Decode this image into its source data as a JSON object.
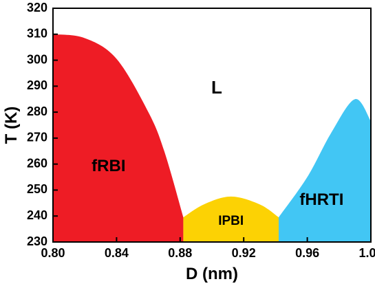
{
  "chart_data": {
    "type": "area",
    "xlabel": "D (nm)",
    "ylabel": "T (K)",
    "xlim": [
      0.8,
      1.0
    ],
    "ylim": [
      230,
      320
    ],
    "x_ticks": [
      "0.80",
      "0.84",
      "0.88",
      "0.92",
      "0.96",
      "1.00"
    ],
    "y_ticks": [
      "230",
      "240",
      "250",
      "260",
      "270",
      "280",
      "290",
      "300",
      "310",
      "320"
    ],
    "grid": false,
    "regions": [
      {
        "name": "fRBI",
        "color": "#ee1c25",
        "boundary": [
          [
            0.8,
            310.0
          ],
          [
            0.82,
            308.5
          ],
          [
            0.84,
            300.5
          ],
          [
            0.86,
            280
          ],
          [
            0.87,
            265
          ],
          [
            0.882,
            239.5
          ]
        ]
      },
      {
        "name": "IPBI",
        "color": "#fcd204",
        "boundary": [
          [
            0.882,
            239.5
          ],
          [
            0.895,
            244.5
          ],
          [
            0.912,
            247.5
          ],
          [
            0.93,
            244.5
          ],
          [
            0.942,
            239.5
          ]
        ]
      },
      {
        "name": "fHRTI",
        "color": "#42c6f4",
        "boundary": [
          [
            0.942,
            239.5
          ],
          [
            0.96,
            255
          ],
          [
            0.975,
            272
          ],
          [
            0.99,
            285
          ],
          [
            1.0,
            276.5
          ]
        ]
      },
      {
        "name": "L",
        "color": "#ffffff",
        "boundary": []
      }
    ]
  }
}
